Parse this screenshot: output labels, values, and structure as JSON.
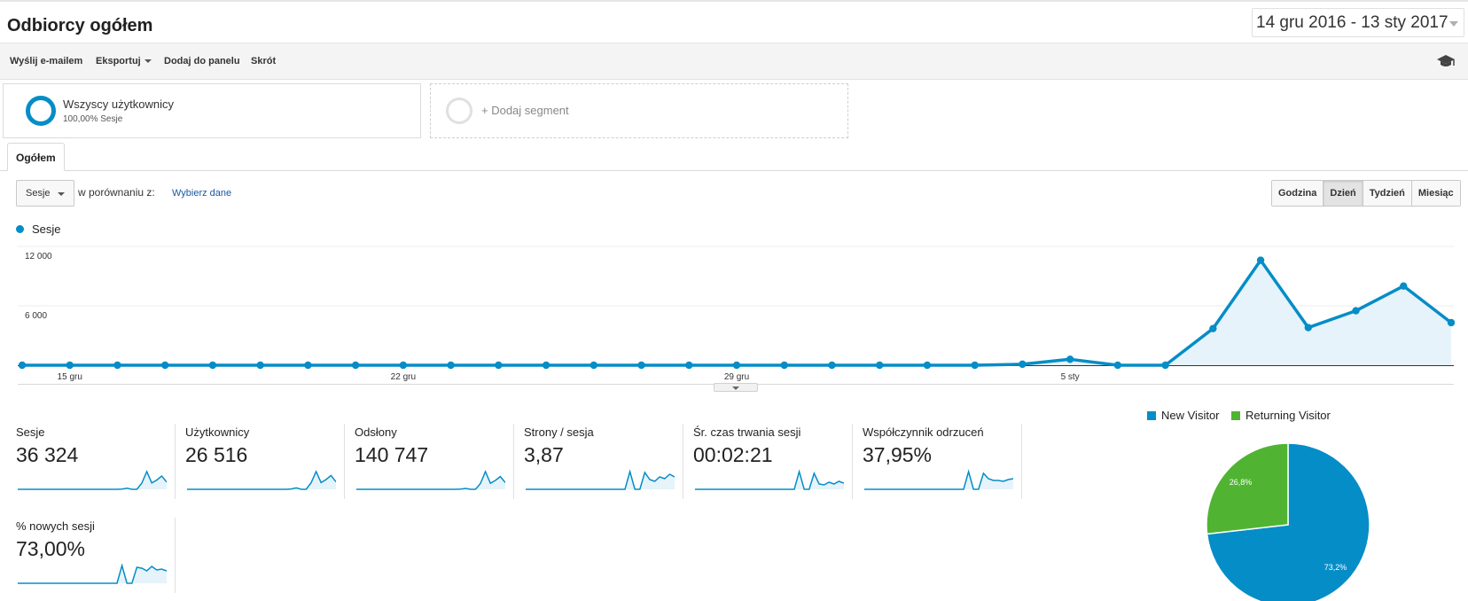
{
  "header": {
    "title": "Odbiorcy ogółem",
    "date_range": "14 gru 2016 - 13 sty 2017"
  },
  "toolbar": {
    "email": "Wyślij e-mailem",
    "export": "Eksportuj",
    "add_to_dashboard": "Dodaj do panelu",
    "shortcut": "Skrót",
    "help_icon": "graduation-cap-icon"
  },
  "segments": {
    "active": {
      "title": "Wszyscy użytkownicy",
      "subtitle": "100,00% Sesje"
    },
    "add_label": "+ Dodaj segment"
  },
  "tabs": {
    "overview": "Ogółem"
  },
  "controls": {
    "metric": "Sesje",
    "compare_label": "w porównaniu z:",
    "compare_link": "Wybierz dane",
    "granularity": [
      "Godzina",
      "Dzień",
      "Tydzień",
      "Miesiąc"
    ],
    "granularity_selected": "Dzień"
  },
  "colors": {
    "primary": "#058dc7",
    "secondary": "#50b432",
    "area_fill": "#e6f3fa"
  },
  "chart_data": {
    "type": "area",
    "series_name": "Sesje",
    "x_labels": [
      "15 gru",
      "22 gru",
      "29 gru",
      "5 sty"
    ],
    "x_label_index": [
      1,
      8,
      15,
      22
    ],
    "y_ticks": [
      "12 000",
      "6 000"
    ],
    "ylim": [
      0,
      12000
    ],
    "x": [
      "14 gru",
      "15 gru",
      "16 gru",
      "17 gru",
      "18 gru",
      "19 gru",
      "20 gru",
      "21 gru",
      "22 gru",
      "23 gru",
      "24 gru",
      "25 gru",
      "26 gru",
      "27 gru",
      "28 gru",
      "29 gru",
      "30 gru",
      "31 gru",
      "1 sty",
      "2 sty",
      "3 sty",
      "4 sty",
      "5 sty",
      "6 sty",
      "7 sty",
      "8 sty",
      "9 sty",
      "10 sty",
      "11 sty",
      "12 sty",
      "13 sty"
    ],
    "values": [
      0,
      0,
      0,
      0,
      0,
      0,
      0,
      0,
      0,
      0,
      0,
      0,
      0,
      0,
      0,
      0,
      0,
      0,
      0,
      0,
      0,
      100,
      600,
      0,
      0,
      3700,
      10600,
      3800,
      5500,
      8000,
      4300
    ]
  },
  "scorecards": [
    {
      "label": "Sesje",
      "value": "36 324",
      "spark": [
        0,
        0,
        0,
        0,
        0,
        0,
        0,
        0,
        0,
        0,
        0,
        0,
        0,
        0,
        0,
        0,
        0,
        0,
        0,
        0,
        0,
        0.01,
        0.06,
        0,
        0,
        0.35,
        1,
        0.36,
        0.52,
        0.75,
        0.41
      ]
    },
    {
      "label": "Użytkownicy",
      "value": "26 516",
      "spark": [
        0,
        0,
        0,
        0,
        0,
        0,
        0,
        0,
        0,
        0,
        0,
        0,
        0,
        0,
        0,
        0,
        0,
        0,
        0,
        0,
        0,
        0.02,
        0.08,
        0,
        0,
        0.37,
        1,
        0.38,
        0.55,
        0.78,
        0.42
      ]
    },
    {
      "label": "Odsłony",
      "value": "140 747",
      "spark": [
        0,
        0,
        0,
        0,
        0,
        0,
        0,
        0,
        0,
        0,
        0,
        0,
        0,
        0,
        0,
        0,
        0,
        0,
        0,
        0,
        0,
        0.01,
        0.05,
        0,
        0,
        0.33,
        1,
        0.34,
        0.5,
        0.72,
        0.38
      ]
    },
    {
      "label": "Strony / sesja",
      "value": "3,87",
      "spark": [
        0,
        0,
        0,
        0,
        0,
        0,
        0,
        0,
        0,
        0,
        0,
        0,
        0,
        0,
        0,
        0,
        0,
        0,
        0,
        0,
        0,
        1,
        0,
        0,
        0.95,
        0.55,
        0.45,
        0.7,
        0.6,
        0.85,
        0.7
      ]
    },
    {
      "label": "Śr. czas trwania sesji",
      "value": "00:02:21",
      "spark": [
        0,
        0,
        0,
        0,
        0,
        0,
        0,
        0,
        0,
        0,
        0,
        0,
        0,
        0,
        0,
        0,
        0,
        0,
        0,
        0,
        0,
        1,
        0,
        0,
        0.9,
        0.3,
        0.25,
        0.4,
        0.3,
        0.45,
        0.35
      ]
    },
    {
      "label": "Współczynnik odrzuceń",
      "value": "37,95%",
      "spark": [
        0,
        0,
        0,
        0,
        0,
        0,
        0,
        0,
        0,
        0,
        0,
        0,
        0,
        0,
        0,
        0,
        0,
        0,
        0,
        0,
        0,
        1,
        0,
        0,
        0.9,
        0.6,
        0.5,
        0.5,
        0.45,
        0.55,
        0.6
      ]
    },
    {
      "label": "% nowych sesji",
      "value": "73,00%",
      "spark": [
        0,
        0,
        0,
        0,
        0,
        0,
        0,
        0,
        0,
        0,
        0,
        0,
        0,
        0,
        0,
        0,
        0,
        0,
        0,
        0,
        0,
        1,
        0,
        0,
        0.9,
        0.85,
        0.7,
        0.95,
        0.75,
        0.8,
        0.7
      ]
    }
  ],
  "pie": {
    "legend": [
      "New Visitor",
      "Returning Visitor"
    ],
    "values": [
      73.2,
      26.8
    ],
    "labels": [
      "73,2%",
      "26,8%"
    ]
  }
}
